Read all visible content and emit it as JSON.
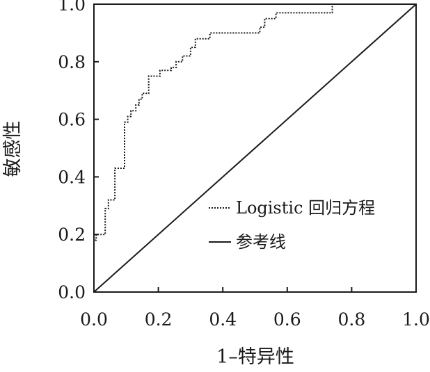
{
  "chart_data": {
    "type": "line",
    "title": "",
    "xlabel": "1–特异性",
    "ylabel": "敏感性",
    "xlim": [
      0,
      1
    ],
    "ylim": [
      0,
      1
    ],
    "x_ticks": [
      "0.0",
      "0.2",
      "0.4",
      "0.6",
      "0.8",
      "1.0"
    ],
    "y_ticks": [
      "0.0",
      "0.2",
      "0.4",
      "0.6",
      "0.8",
      "1.0"
    ],
    "grid": false,
    "legend_position": "lower-right",
    "series": [
      {
        "name": "Logistic 回归方程",
        "style": "dotted",
        "color": "#1a1a1a",
        "x": [
          0.0,
          0.0,
          0.007,
          0.007,
          0.035,
          0.035,
          0.045,
          0.045,
          0.065,
          0.065,
          0.095,
          0.095,
          0.105,
          0.105,
          0.115,
          0.115,
          0.13,
          0.13,
          0.14,
          0.14,
          0.15,
          0.15,
          0.17,
          0.17,
          0.205,
          0.205,
          0.24,
          0.24,
          0.255,
          0.255,
          0.275,
          0.275,
          0.3,
          0.3,
          0.315,
          0.315,
          0.36,
          0.36,
          0.515,
          0.515,
          0.53,
          0.53,
          0.565,
          0.565,
          0.74,
          0.74,
          0.89,
          0.89,
          1.0
        ],
        "y": [
          0.0,
          0.18,
          0.18,
          0.2,
          0.2,
          0.29,
          0.29,
          0.32,
          0.32,
          0.43,
          0.43,
          0.59,
          0.59,
          0.61,
          0.61,
          0.63,
          0.63,
          0.65,
          0.65,
          0.67,
          0.67,
          0.69,
          0.69,
          0.75,
          0.75,
          0.77,
          0.77,
          0.78,
          0.78,
          0.8,
          0.8,
          0.82,
          0.82,
          0.85,
          0.85,
          0.88,
          0.88,
          0.9,
          0.9,
          0.92,
          0.92,
          0.95,
          0.95,
          0.97,
          0.97,
          1.0,
          1.0,
          1.0,
          1.0
        ]
      },
      {
        "name": "参考线",
        "style": "solid",
        "color": "#1a1a1a",
        "x": [
          0,
          1
        ],
        "y": [
          0,
          1
        ]
      }
    ]
  }
}
